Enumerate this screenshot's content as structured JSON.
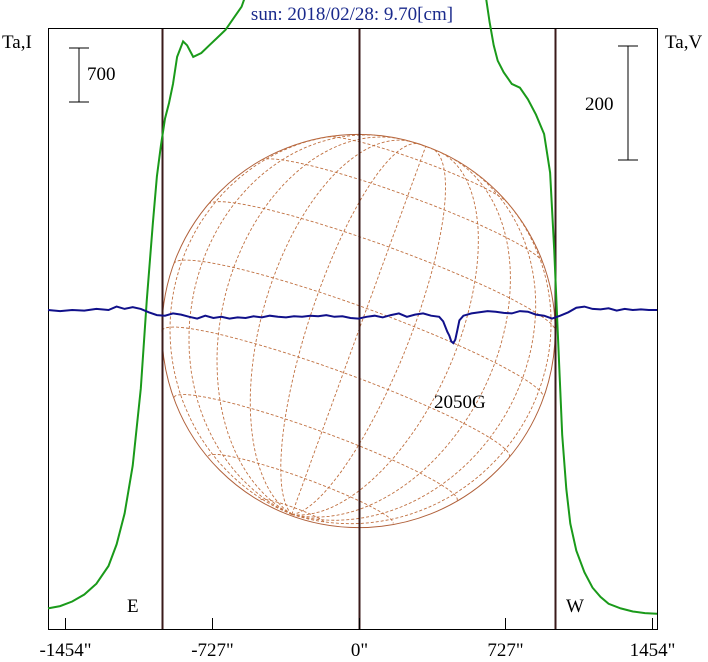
{
  "chart_data": {
    "type": "line",
    "title": "sun: 2018/02/28: 9.70[cm]",
    "ylabel_left": "Ta,I",
    "ylabel_right": "Ta,V",
    "scale_left": "700",
    "scale_right": "200",
    "x_ticks": [
      {
        "value": -1454,
        "label": "-1454\""
      },
      {
        "value": -727,
        "label": "-727\""
      },
      {
        "value": 0,
        "label": "0\""
      },
      {
        "value": 727,
        "label": "727\""
      },
      {
        "value": 1454,
        "label": "1454\""
      }
    ],
    "xlim": [
      -1540,
      1480
    ],
    "limb_markers": [
      {
        "label": "E",
        "x": -975
      },
      {
        "label": "W",
        "x": 975
      }
    ],
    "solar_disk": {
      "center_x": 0,
      "radius": 975
    },
    "annotations": [
      {
        "text": "2050G",
        "x": 470
      }
    ],
    "series": [
      {
        "name": "I",
        "color": "#1a9a1a",
        "x": [
          -1540,
          -1480,
          -1420,
          -1360,
          -1300,
          -1240,
          -1200,
          -1160,
          -1120,
          -1080,
          -1050,
          -1020,
          -1000,
          -980,
          -960,
          -940,
          -920,
          -900,
          -870,
          -850,
          -820,
          -780,
          -740,
          -700,
          -660,
          -620,
          -580,
          -540,
          -500,
          -460,
          -420,
          -380,
          -340,
          -300,
          -260,
          -220,
          -180,
          -150,
          -120,
          -90,
          -60,
          -30,
          0,
          30,
          60,
          90,
          120,
          150,
          180,
          210,
          240,
          270,
          300,
          340,
          380,
          420,
          460,
          500,
          530,
          550,
          570,
          590,
          610,
          630,
          650,
          670,
          690,
          720,
          760,
          800,
          840,
          880,
          920,
          950,
          970,
          990,
          1010,
          1030,
          1050,
          1080,
          1120,
          1160,
          1200,
          1240,
          1300,
          1360,
          1420,
          1480
        ],
        "y": [
          150,
          180,
          240,
          330,
          470,
          700,
          980,
          1380,
          2000,
          3000,
          4150,
          5150,
          5750,
          6150,
          6500,
          6700,
          6950,
          7300,
          7500,
          7450,
          7300,
          7350,
          7450,
          7550,
          7650,
          7800,
          7950,
          8250,
          8100,
          8300,
          8450,
          8350,
          8550,
          8650,
          8700,
          8850,
          9050,
          8750,
          8900,
          8650,
          8750,
          8650,
          8700,
          8600,
          8650,
          8550,
          8400,
          8500,
          8400,
          8500,
          8400,
          8600,
          8500,
          8650,
          8850,
          8700,
          9150,
          9700,
          10400,
          10200,
          9500,
          8850,
          8450,
          8100,
          7750,
          7450,
          7250,
          7100,
          6950,
          6900,
          6750,
          6550,
          6300,
          5800,
          4800,
          3600,
          2400,
          1700,
          1250,
          900,
          620,
          420,
          300,
          210,
          150,
          110,
          90,
          80
        ]
      },
      {
        "name": "V",
        "color": "#10108a",
        "x": [
          -1540,
          -1480,
          -1420,
          -1360,
          -1300,
          -1240,
          -1200,
          -1160,
          -1120,
          -1080,
          -1040,
          -1000,
          -960,
          -920,
          -880,
          -840,
          -800,
          -760,
          -720,
          -680,
          -640,
          -600,
          -560,
          -520,
          -480,
          -440,
          -400,
          -360,
          -320,
          -280,
          -240,
          -200,
          -160,
          -120,
          -80,
          -40,
          0,
          40,
          80,
          120,
          160,
          200,
          240,
          280,
          320,
          360,
          400,
          420,
          440,
          450,
          460,
          470,
          480,
          490,
          500,
          520,
          560,
          600,
          640,
          680,
          720,
          760,
          800,
          840,
          880,
          920,
          960,
          1000,
          1040,
          1080,
          1120,
          1160,
          1200,
          1240,
          1280,
          1320,
          1360,
          1400,
          1440,
          1480
        ],
        "y": [
          0,
          -2,
          0,
          -1,
          2,
          0,
          6,
          2,
          5,
          2,
          -4,
          -9,
          -10,
          -6,
          -8,
          -12,
          -15,
          -10,
          -14,
          -12,
          -15,
          -13,
          -14,
          -11,
          -13,
          -10,
          -12,
          -13,
          -11,
          -12,
          -10,
          -11,
          -9,
          -12,
          -11,
          -14,
          -15,
          -12,
          -10,
          -13,
          -9,
          -6,
          -12,
          -8,
          -6,
          -10,
          -12,
          -20,
          -38,
          -45,
          -55,
          -58,
          -52,
          -35,
          -18,
          -10,
          -6,
          -4,
          -2,
          -3,
          -5,
          -6,
          -2,
          -3,
          -8,
          -10,
          -15,
          -10,
          -4,
          4,
          6,
          2,
          1,
          3,
          -1,
          2,
          0,
          1,
          0,
          0
        ]
      }
    ]
  }
}
